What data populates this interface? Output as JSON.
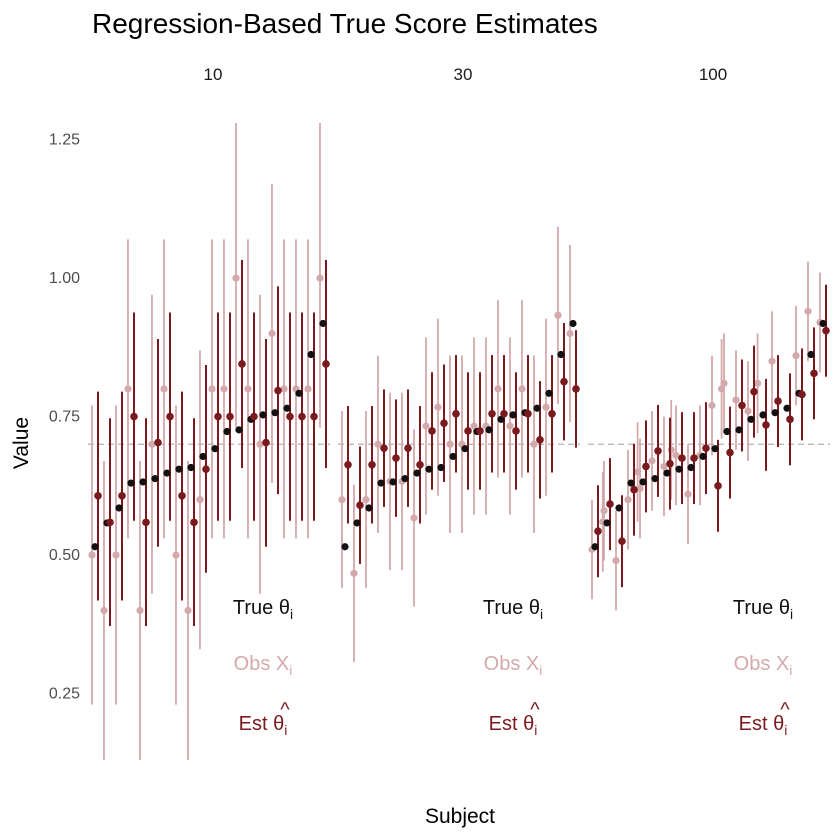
{
  "chart_data": {
    "type": "scatter",
    "title": "Regression-Based True Score Estimates",
    "xlabel": "Subject",
    "ylabel": "Value",
    "ylim": [
      0.13,
      1.28
    ],
    "yticks": [
      0.25,
      0.5,
      0.75,
      1.0
    ],
    "ytick_labels": [
      "0.25",
      "0.50",
      "0.75",
      "1.00",
      "1.25"
    ],
    "ytick_values": [
      0.25,
      0.5,
      0.75,
      1.0,
      1.25
    ],
    "reference_line": 0.7,
    "n_subjects": 20,
    "true_theta": [
      0.515,
      0.558,
      0.585,
      0.63,
      0.632,
      0.638,
      0.648,
      0.655,
      0.658,
      0.678,
      0.692,
      0.723,
      0.726,
      0.745,
      0.753,
      0.757,
      0.765,
      0.792,
      0.862,
      0.918
    ],
    "colors": {
      "true": "#111111",
      "obs": "#d4a9ab",
      "est": "#7b1a1e",
      "reference": "#b0b0b0"
    },
    "panels": [
      {
        "label": "10",
        "obs": [
          0.5,
          0.4,
          0.5,
          0.8,
          0.4,
          0.7,
          0.8,
          0.5,
          0.4,
          0.6,
          0.8,
          0.8,
          1.0,
          0.8,
          0.7,
          0.9,
          0.8,
          0.8,
          0.8,
          1.0
        ],
        "obs_lo": [
          0.23,
          0.13,
          0.23,
          0.53,
          0.13,
          0.43,
          0.53,
          0.23,
          0.13,
          0.33,
          0.53,
          0.53,
          0.73,
          0.53,
          0.43,
          0.63,
          0.53,
          0.53,
          0.53,
          0.73
        ],
        "obs_hi": [
          0.77,
          0.67,
          0.77,
          1.07,
          0.67,
          0.97,
          1.07,
          0.77,
          0.67,
          0.87,
          1.07,
          1.07,
          1.28,
          1.07,
          0.97,
          1.17,
          1.07,
          1.07,
          1.07,
          1.28
        ],
        "est": [
          0.607,
          0.559,
          0.607,
          0.75,
          0.559,
          0.703,
          0.75,
          0.607,
          0.559,
          0.655,
          0.75,
          0.75,
          0.845,
          0.75,
          0.703,
          0.797,
          0.75,
          0.75,
          0.75,
          0.845
        ],
        "est_lo": [
          0.418,
          0.372,
          0.418,
          0.562,
          0.372,
          0.515,
          0.562,
          0.418,
          0.372,
          0.468,
          0.562,
          0.562,
          0.657,
          0.562,
          0.515,
          0.61,
          0.562,
          0.562,
          0.562,
          0.657
        ],
        "est_hi": [
          0.795,
          0.747,
          0.795,
          0.938,
          0.747,
          0.89,
          0.938,
          0.795,
          0.747,
          0.843,
          0.938,
          0.938,
          1.033,
          0.938,
          0.89,
          0.985,
          0.938,
          0.938,
          0.938,
          1.033
        ]
      },
      {
        "label": "30",
        "obs": [
          0.6,
          0.467,
          0.6,
          0.7,
          0.633,
          0.633,
          0.567,
          0.733,
          0.767,
          0.7,
          0.7,
          0.733,
          0.733,
          0.8,
          0.733,
          0.8,
          0.7,
          0.767,
          0.933,
          0.9
        ],
        "obs_lo": [
          0.44,
          0.307,
          0.44,
          0.54,
          0.473,
          0.473,
          0.407,
          0.573,
          0.607,
          0.54,
          0.54,
          0.573,
          0.573,
          0.64,
          0.573,
          0.64,
          0.54,
          0.607,
          0.773,
          0.74
        ],
        "obs_hi": [
          0.76,
          0.627,
          0.76,
          0.86,
          0.793,
          0.793,
          0.727,
          0.893,
          0.927,
          0.86,
          0.86,
          0.893,
          0.893,
          0.96,
          0.893,
          0.96,
          0.86,
          0.927,
          1.093,
          1.06
        ],
        "est": [
          0.663,
          0.59,
          0.663,
          0.693,
          0.675,
          0.693,
          0.663,
          0.724,
          0.738,
          0.755,
          0.724,
          0.724,
          0.755,
          0.755,
          0.724,
          0.755,
          0.708,
          0.755,
          0.813,
          0.8
        ],
        "est_lo": [
          0.557,
          0.484,
          0.557,
          0.587,
          0.569,
          0.587,
          0.557,
          0.618,
          0.632,
          0.649,
          0.618,
          0.618,
          0.649,
          0.649,
          0.618,
          0.649,
          0.602,
          0.649,
          0.707,
          0.694
        ],
        "est_hi": [
          0.769,
          0.696,
          0.769,
          0.799,
          0.781,
          0.799,
          0.769,
          0.83,
          0.844,
          0.861,
          0.83,
          0.83,
          0.861,
          0.861,
          0.83,
          0.861,
          0.814,
          0.861,
          0.919,
          0.906
        ]
      },
      {
        "label": "100",
        "obs": [
          0.51,
          0.56,
          0.58,
          0.49,
          0.6,
          0.65,
          0.62,
          0.67,
          0.66,
          0.69,
          0.68,
          0.61,
          0.68,
          0.77,
          0.8,
          0.81,
          0.78,
          0.76,
          0.81,
          0.85,
          0.86,
          0.94,
          0.92
        ],
        "obs_x": [
          0.0,
          0.9,
          1.0,
          2.0,
          3.0,
          3.8,
          4.0,
          5.0,
          6.0,
          6.6,
          7.0,
          8.0,
          9.0,
          10.0,
          10.8,
          11.0,
          12.0,
          13.0,
          13.8,
          15.0,
          17.0,
          18.0,
          19.0
        ],
        "obs_lo": [
          0.42,
          0.47,
          0.49,
          0.4,
          0.51,
          0.56,
          0.53,
          0.58,
          0.57,
          0.6,
          0.59,
          0.52,
          0.59,
          0.68,
          0.71,
          0.72,
          0.69,
          0.67,
          0.72,
          0.76,
          0.77,
          0.85,
          0.83
        ],
        "obs_hi": [
          0.6,
          0.65,
          0.67,
          0.58,
          0.69,
          0.74,
          0.71,
          0.76,
          0.75,
          0.78,
          0.77,
          0.7,
          0.77,
          0.86,
          0.89,
          0.9,
          0.87,
          0.85,
          0.9,
          0.94,
          0.95,
          1.03,
          1.01
        ],
        "est": [
          0.543,
          0.592,
          0.525,
          0.618,
          0.66,
          0.688,
          0.665,
          0.675,
          0.675,
          0.693,
          0.625,
          0.685,
          0.77,
          0.795,
          0.735,
          0.778,
          0.745,
          0.79,
          0.828,
          0.905
        ],
        "est_lo": [
          0.46,
          0.509,
          0.442,
          0.535,
          0.577,
          0.605,
          0.582,
          0.592,
          0.592,
          0.61,
          0.542,
          0.602,
          0.687,
          0.712,
          0.652,
          0.695,
          0.662,
          0.707,
          0.745,
          0.822
        ],
        "est_hi": [
          0.626,
          0.675,
          0.608,
          0.701,
          0.743,
          0.771,
          0.748,
          0.758,
          0.758,
          0.776,
          0.708,
          0.768,
          0.853,
          0.878,
          0.818,
          0.861,
          0.828,
          0.873,
          0.911,
          0.988
        ]
      }
    ],
    "legend": {
      "true_main": "True θ",
      "true_sub": "i",
      "obs_main": "Obs X",
      "obs_sub": "i",
      "est_main": "Est θ",
      "est_hat": "^",
      "est_sub": "i"
    }
  }
}
